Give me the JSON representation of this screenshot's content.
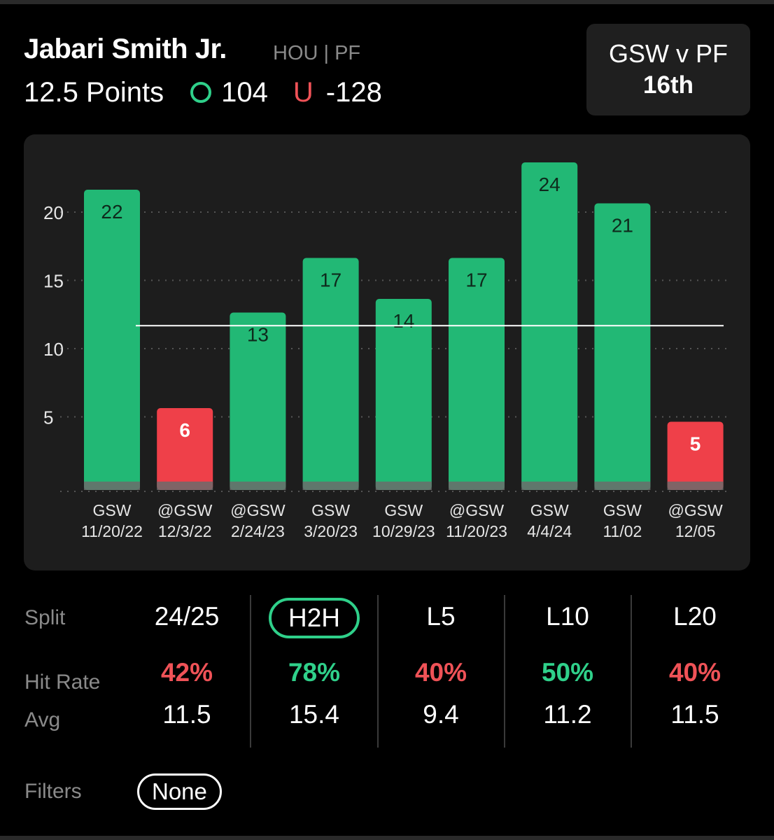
{
  "header": {
    "player_name": "Jabari Smith Jr.",
    "team_position": "HOU | PF",
    "line": "12.5 Points",
    "over_label": "O",
    "over_odds": "104",
    "under_label": "U",
    "under_odds": "-128"
  },
  "matchup": {
    "title": "GSW v PF",
    "rank": "16th"
  },
  "colors": {
    "over_green": "#2fd08a",
    "bar_green": "#22b875",
    "under_red": "#ef4049",
    "panel": "#1d1d1d"
  },
  "chart_data": {
    "type": "bar",
    "line_value": 12.5,
    "ylim": [
      0,
      25
    ],
    "yticks": [
      5,
      10,
      15,
      20
    ],
    "grid": true,
    "categories": [
      {
        "opponent": "GSW",
        "date": "11/20/22"
      },
      {
        "opponent": "@GSW",
        "date": "12/3/22"
      },
      {
        "opponent": "@GSW",
        "date": "2/24/23"
      },
      {
        "opponent": "GSW",
        "date": "3/20/23"
      },
      {
        "opponent": "GSW",
        "date": "10/29/23"
      },
      {
        "opponent": "@GSW",
        "date": "11/20/23"
      },
      {
        "opponent": "GSW",
        "date": "4/4/24"
      },
      {
        "opponent": "GSW",
        "date": "11/02"
      },
      {
        "opponent": "@GSW",
        "date": "12/05"
      }
    ],
    "values": [
      22,
      6,
      13,
      17,
      14,
      17,
      24,
      21,
      5
    ],
    "result": [
      "over",
      "under",
      "over",
      "over",
      "over",
      "over",
      "over",
      "over",
      "under"
    ]
  },
  "splits": {
    "row_labels": {
      "split": "Split",
      "hit_rate": "Hit Rate",
      "avg": "Avg"
    },
    "columns": [
      {
        "label": "24/25",
        "hit_rate": "42%",
        "hit_status": "red",
        "avg": "11.5"
      },
      {
        "label": "H2H",
        "hit_rate": "78%",
        "hit_status": "green",
        "avg": "15.4",
        "active": true
      },
      {
        "label": "L5",
        "hit_rate": "40%",
        "hit_status": "red",
        "avg": "9.4"
      },
      {
        "label": "L10",
        "hit_rate": "50%",
        "hit_status": "green",
        "avg": "11.2"
      },
      {
        "label": "L20",
        "hit_rate": "40%",
        "hit_status": "red",
        "avg": "11.5"
      }
    ]
  },
  "filters": {
    "label": "Filters",
    "value": "None"
  }
}
